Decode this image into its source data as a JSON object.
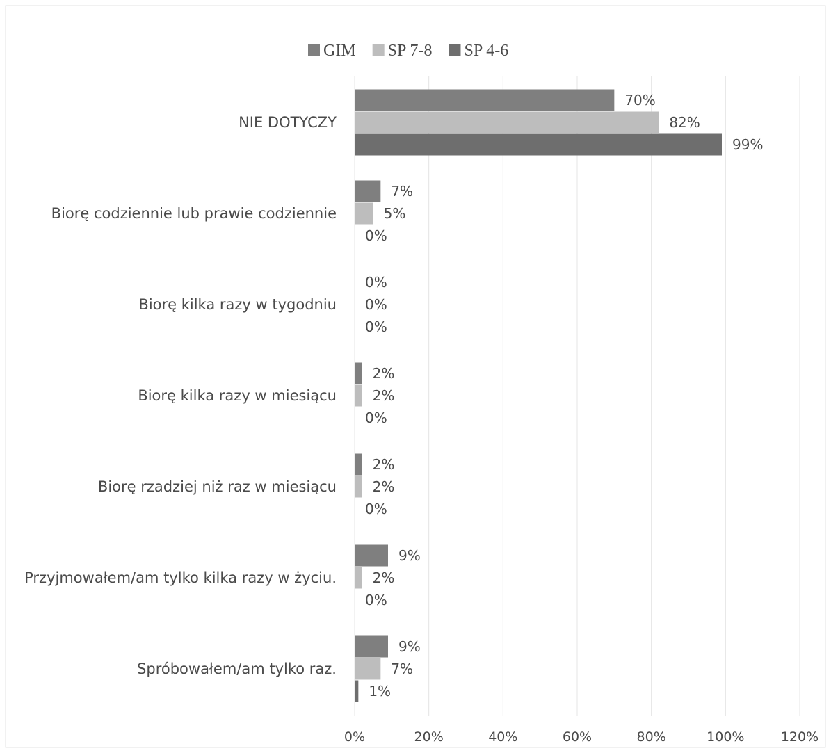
{
  "chart_data": {
    "type": "bar",
    "orientation": "horizontal",
    "legend_position": "top",
    "grid": true,
    "xlim": [
      0,
      120
    ],
    "x_ticks": [
      "0%",
      "20%",
      "40%",
      "60%",
      "80%",
      "100%",
      "120%"
    ],
    "categories": [
      "NIE DOTYCZY",
      "Biorę codziennie lub prawie codziennie",
      "Biorę kilka razy w tygodniu",
      "Biorę kilka razy w miesiącu",
      "Biorę rzadziej niż raz w miesiącu",
      "Przyjmowałem/am tylko kilka razy w życiu.",
      "Spróbowałem/am tylko raz."
    ],
    "series": [
      {
        "name": "GIM",
        "color": "#7f7f7f",
        "values": [
          70,
          7,
          0,
          2,
          2,
          9,
          9
        ],
        "labels": [
          "70%",
          "7%",
          "0%",
          "2%",
          "2%",
          "9%",
          "9%"
        ]
      },
      {
        "name": "SP 7-8",
        "color": "#bdbdbd",
        "values": [
          82,
          5,
          0,
          2,
          2,
          2,
          7
        ],
        "labels": [
          "82%",
          "5%",
          "0%",
          "2%",
          "2%",
          "2%",
          "7%"
        ]
      },
      {
        "name": "SP 4-6",
        "color": "#6e6e6e",
        "values": [
          99,
          0,
          0,
          0,
          0,
          0,
          1
        ],
        "labels": [
          "99%",
          "0%",
          "0%",
          "0%",
          "0%",
          "0%",
          "1%"
        ]
      }
    ]
  }
}
